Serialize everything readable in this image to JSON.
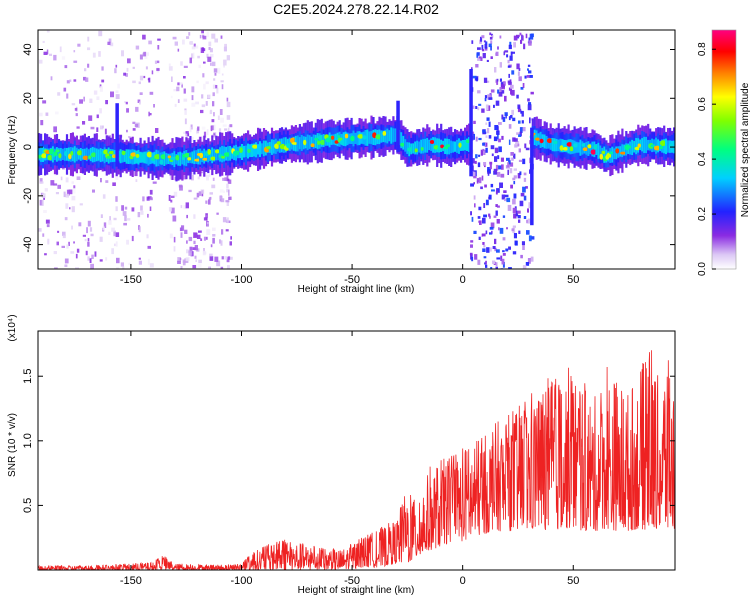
{
  "figure": {
    "title": "C2E5.2024.278.22.14.R02"
  },
  "chart_data": [
    {
      "type": "heatmap",
      "xlabel": "Height of straight line (km)",
      "ylabel": "Frequency (Hz)",
      "xlim": [
        -192,
        96
      ],
      "ylim": [
        -50,
        48
      ],
      "xticks": [
        -150,
        -100,
        -50,
        0,
        50
      ],
      "yticks": [
        -40,
        -20,
        0,
        20,
        40
      ],
      "colorbar": {
        "label": "Normalized spectral amplitude",
        "range": [
          0.0,
          0.87
        ],
        "ticks": [
          "0.0",
          "0.2",
          "0.4",
          "0.6",
          "0.8"
        ],
        "tick_values": [
          0.0,
          0.2,
          0.4,
          0.6,
          0.8
        ],
        "colormap": "rainbow (white-violet to magenta)"
      },
      "noise_bands_km": [
        [
          -192,
          -138
        ],
        [
          -133,
          -105
        ],
        [
          3,
          31
        ]
      ],
      "ridge_center_hz": [
        [
          -192,
          -3
        ],
        [
          -170,
          -3
        ],
        [
          -150,
          -4
        ],
        [
          -130,
          -5
        ],
        [
          -110,
          -3
        ],
        [
          -100,
          -2
        ],
        [
          -80,
          1
        ],
        [
          -60,
          3
        ],
        [
          -40,
          4
        ],
        [
          -30,
          5
        ],
        [
          -25,
          -1
        ],
        [
          -15,
          1
        ],
        [
          -5,
          0
        ],
        [
          2,
          1
        ],
        [
          32,
          4
        ],
        [
          40,
          1
        ],
        [
          50,
          0
        ],
        [
          60,
          -1
        ],
        [
          65,
          -4
        ],
        [
          70,
          -2
        ],
        [
          80,
          1
        ],
        [
          96,
          0
        ]
      ]
    },
    {
      "type": "line",
      "xlabel": "Height of straight line (km)",
      "ylabel": "SNR (10 * v/v)",
      "y_scale_label": "(x10⁴)",
      "xlim": [
        -192,
        96
      ],
      "ylim": [
        0,
        1.85
      ],
      "xticks": [
        -150,
        -100,
        -50,
        0,
        50
      ],
      "yticks": [
        0.5,
        1.0,
        1.5
      ],
      "ytick_labels": [
        "0.5",
        "1.0",
        "1.5"
      ],
      "series": [
        {
          "color": "#ee2222",
          "envelope": [
            [
              -192,
              0.03,
              0.0
            ],
            [
              -160,
              0.04,
              0.0
            ],
            [
              -140,
              0.06,
              0.0
            ],
            [
              -136,
              0.12,
              0.0
            ],
            [
              -130,
              0.05,
              0.0
            ],
            [
              -110,
              0.04,
              0.0
            ],
            [
              -100,
              0.05,
              0.0
            ],
            [
              -95,
              0.14,
              0.0
            ],
            [
              -88,
              0.2,
              0.0
            ],
            [
              -80,
              0.25,
              0.0
            ],
            [
              -75,
              0.22,
              0.0
            ],
            [
              -65,
              0.18,
              0.0
            ],
            [
              -55,
              0.16,
              0.0
            ],
            [
              -45,
              0.26,
              0.02
            ],
            [
              -38,
              0.32,
              0.02
            ],
            [
              -30,
              0.4,
              0.05
            ],
            [
              -25,
              0.65,
              0.05
            ],
            [
              -22,
              0.55,
              0.08
            ],
            [
              -18,
              0.6,
              0.12
            ],
            [
              -15,
              0.8,
              0.15
            ],
            [
              -10,
              0.85,
              0.18
            ],
            [
              -5,
              0.9,
              0.22
            ],
            [
              0,
              0.95,
              0.22
            ],
            [
              5,
              1.0,
              0.25
            ],
            [
              10,
              1.05,
              0.28
            ],
            [
              15,
              1.15,
              0.3
            ],
            [
              20,
              1.2,
              0.3
            ],
            [
              30,
              1.35,
              0.3
            ],
            [
              35,
              1.45,
              0.32
            ],
            [
              40,
              1.5,
              0.3
            ],
            [
              45,
              1.55,
              0.32
            ],
            [
              50,
              1.6,
              0.32
            ],
            [
              55,
              1.45,
              0.3
            ],
            [
              60,
              1.35,
              0.3
            ],
            [
              65,
              1.6,
              0.32
            ],
            [
              70,
              1.5,
              0.3
            ],
            [
              75,
              1.4,
              0.3
            ],
            [
              80,
              1.55,
              0.32
            ],
            [
              85,
              1.75,
              0.3
            ],
            [
              88,
              1.5,
              0.32
            ],
            [
              92,
              1.68,
              0.3
            ],
            [
              96,
              1.45,
              0.3
            ]
          ]
        }
      ]
    }
  ]
}
